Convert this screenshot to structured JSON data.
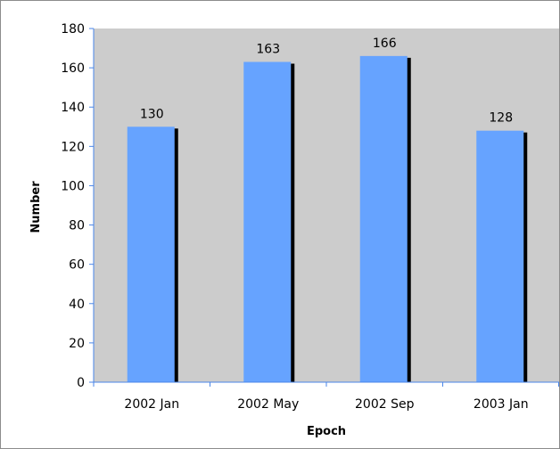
{
  "chart_data": {
    "type": "bar",
    "title": "",
    "xlabel": "Epoch",
    "ylabel": "Number",
    "categories": [
      "2002 Jan",
      "2002 May",
      "2002 Sep",
      "2003 Jan"
    ],
    "values": [
      130,
      163,
      166,
      128
    ],
    "data_labels": [
      "130",
      "163",
      "166",
      "128"
    ],
    "ylim": [
      0,
      180
    ],
    "yticks": [
      0,
      20,
      40,
      60,
      80,
      100,
      120,
      140,
      160,
      180
    ],
    "ytick_labels": [
      "0",
      "20",
      "40",
      "60",
      "80",
      "100",
      "120",
      "140",
      "160",
      "180"
    ],
    "grid": false,
    "legend": "none",
    "colors": {
      "bar": "#66a3ff",
      "bar_shadow": "#000000",
      "plot_background": "#cccccc",
      "axis": "#4a86e8"
    }
  }
}
